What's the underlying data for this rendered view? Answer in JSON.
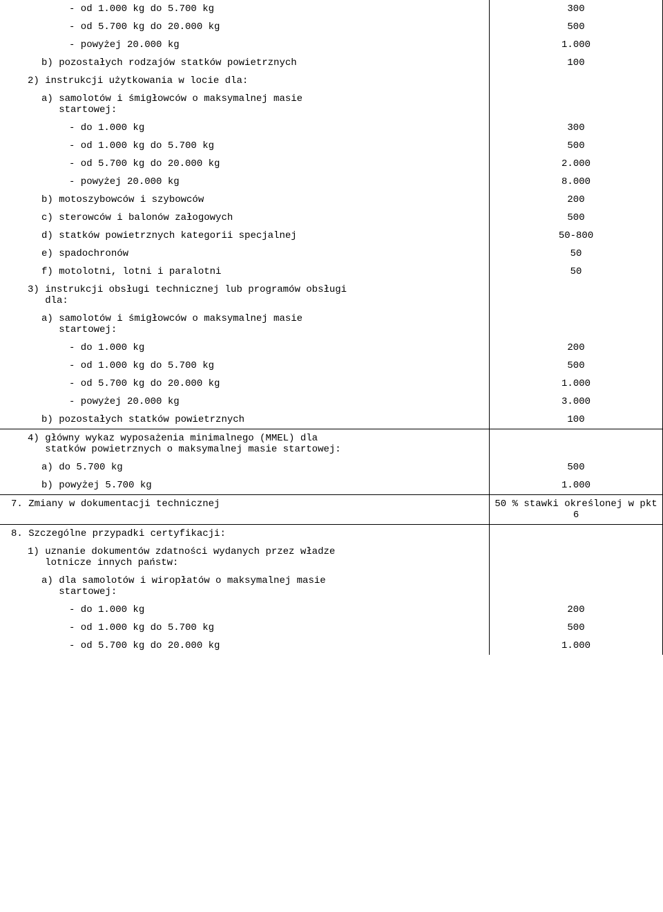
{
  "font_family": "Courier New",
  "font_size_pt": 11,
  "text_color": "#000000",
  "background_color": "#ffffff",
  "border_color": "#000000",
  "rows": [
    {
      "left": "- od 1.000 kg do 5.700 kg",
      "right": "300",
      "indent": 3
    },
    {
      "left": "- od 5.700 kg do 20.000 kg",
      "right": "500",
      "indent": 3
    },
    {
      "left": "- powyżej 20.000 kg",
      "right": "1.000",
      "indent": 3
    },
    {
      "left": "b) pozostałych rodzajów statków powietrznych",
      "right": "100",
      "indent": 2
    },
    {
      "left": "2) instrukcji użytkowania w locie dla:",
      "right": "",
      "indent": 1
    },
    {
      "left": "a) samolotów i śmigłowców o maksymalnej masie\n   startowej:",
      "right": "",
      "indent": 2
    },
    {
      "left": "- do 1.000 kg",
      "right": "300",
      "indent": 3
    },
    {
      "left": "- od 1.000 kg do 5.700 kg",
      "right": "500",
      "indent": 3
    },
    {
      "left": "- od 5.700 kg do 20.000 kg",
      "right": "2.000",
      "indent": 3
    },
    {
      "left": "- powyżej 20.000 kg",
      "right": "8.000",
      "indent": 3
    },
    {
      "left": "b) motoszybowców i szybowców",
      "right": "200",
      "indent": 2
    },
    {
      "left": "c) sterowców i balonów załogowych",
      "right": "500",
      "indent": 2
    },
    {
      "left": "d) statków powietrznych kategorii specjalnej",
      "right": "50-800",
      "indent": 2
    },
    {
      "left": "e) spadochronów",
      "right": "50",
      "indent": 2
    },
    {
      "left": "f) motolotni, lotni i paralotni",
      "right": "50",
      "indent": 2
    },
    {
      "left": "3) instrukcji obsługi technicznej lub programów obsługi\n   dla:",
      "right": "",
      "indent": 1
    },
    {
      "left": "a) samolotów i śmigłowców o maksymalnej masie\n   startowej:",
      "right": "",
      "indent": 2
    },
    {
      "left": "- do 1.000 kg",
      "right": "200",
      "indent": 3
    },
    {
      "left": "- od 1.000 kg do 5.700 kg",
      "right": "500",
      "indent": 3
    },
    {
      "left": "- od 5.700 kg do 20.000 kg",
      "right": "1.000",
      "indent": 3
    },
    {
      "left": "- powyżej 20.000 kg",
      "right": "3.000",
      "indent": 3
    },
    {
      "left": "b) pozostałych statków powietrznych",
      "right": "100",
      "indent": 2
    },
    {
      "left": "4) główny wykaz wyposażenia minimalnego (MMEL) dla\n   statków powietrznych o maksymalnej masie startowej:",
      "right": "",
      "indent": 1,
      "border_top": true
    },
    {
      "left": "a) do 5.700 kg",
      "right": "500",
      "indent": 2
    },
    {
      "left": "b) powyżej 5.700 kg",
      "right": "1.000",
      "indent": 2
    },
    {
      "left": "7. Zmiany w dokumentacji technicznej",
      "right": "50 % stawki określonej w\npkt 6",
      "indent": 0,
      "border_top": true
    },
    {
      "left": "8. Szczególne przypadki certyfikacji:",
      "right": "",
      "indent": 0,
      "border_top": true
    },
    {
      "left": "1) uznanie dokumentów zdatności wydanych przez władze\n   lotnicze innych państw:",
      "right": "",
      "indent": 1
    },
    {
      "left": "a) dla samolotów i wiropłatów o maksymalnej masie\n   startowej:",
      "right": "",
      "indent": 2
    },
    {
      "left": "- do 1.000 kg",
      "right": "200",
      "indent": 3
    },
    {
      "left": "- od 1.000 kg do 5.700 kg",
      "right": "500",
      "indent": 3
    },
    {
      "left": "- od 5.700 kg do 20.000 kg",
      "right": "1.000",
      "indent": 3
    }
  ]
}
